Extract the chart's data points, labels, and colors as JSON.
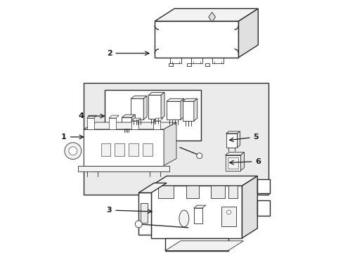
{
  "bg_color": "#ffffff",
  "lc": "#2a2a2a",
  "lc_light": "#555555",
  "fill_white": "#ffffff",
  "fill_light": "#f2f2f2",
  "fill_mid": "#e0e0e0",
  "fill_dark": "#cccccc",
  "label_color": "#1a1a1a",
  "lw_main": 1.0,
  "lw_thin": 0.6,
  "lw_thick": 1.2,
  "fig_w": 4.89,
  "fig_h": 3.6,
  "dpi": 100
}
